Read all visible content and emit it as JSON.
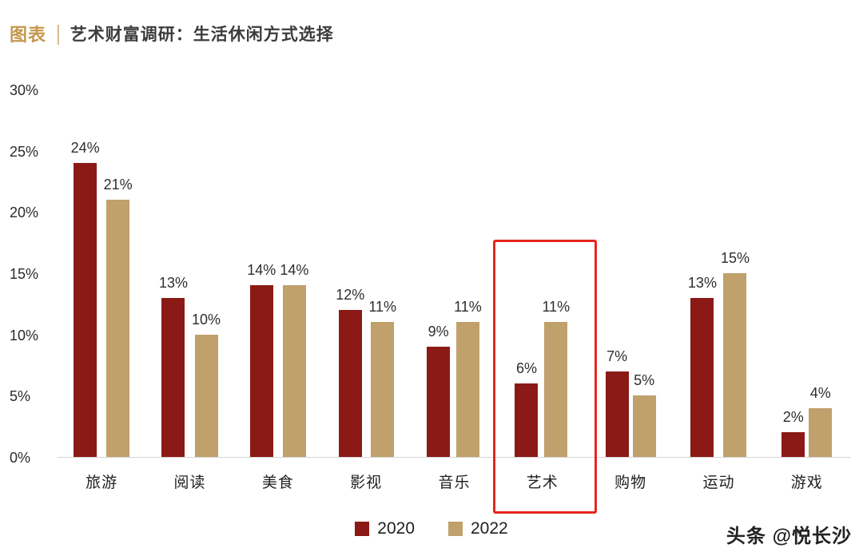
{
  "header": {
    "badge": "图表",
    "separator": "|",
    "title": "艺术财富调研：生活休闲方式选择"
  },
  "chart_data": {
    "type": "bar",
    "title": "艺术财富调研：生活休闲方式选择",
    "categories": [
      "旅游",
      "阅读",
      "美食",
      "影视",
      "音乐",
      "艺术",
      "购物",
      "运动",
      "游戏"
    ],
    "series": [
      {
        "name": "2020",
        "color": "#8b1a17",
        "values": [
          24,
          13,
          14,
          12,
          9,
          6,
          7,
          13,
          2
        ]
      },
      {
        "name": "2022",
        "color": "#c0a06b",
        "values": [
          21,
          10,
          14,
          11,
          11,
          11,
          5,
          15,
          4
        ]
      }
    ],
    "value_suffix": "%",
    "xlabel": "",
    "ylabel": "",
    "ylim": [
      0,
      30
    ],
    "yticks": [
      "0%",
      "5%",
      "10%",
      "15%",
      "20%",
      "25%",
      "30%"
    ],
    "grid": false,
    "legend_position": "bottom",
    "highlight": {
      "category": "艺术",
      "color": "#e5261f"
    }
  },
  "watermark": "头条 @悦长沙"
}
